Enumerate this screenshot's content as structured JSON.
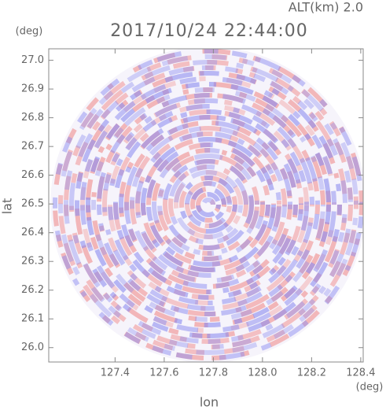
{
  "chart_data": {
    "type": "radar-ppi",
    "title": "2017/10/24 22:44:00",
    "annotation": "ALT(km) 2.0",
    "x_label": "lon",
    "y_label": "lat",
    "x_unit": "(deg)",
    "y_unit": "(deg)",
    "xlim": [
      127.13,
      128.41
    ],
    "ylim": [
      25.95,
      27.04
    ],
    "xticks": [
      127.4,
      127.6,
      127.8,
      {
        "value": 128.0,
        "label": "128.0"
      },
      128.2,
      128.4
    ],
    "yticks": [
      {
        "value": 26.0,
        "label": "26.0"
      },
      26.1,
      26.2,
      26.3,
      26.4,
      26.5,
      26.6,
      26.7,
      26.8,
      26.9,
      {
        "value": 27.0,
        "label": "27.0"
      }
    ]
  }
}
